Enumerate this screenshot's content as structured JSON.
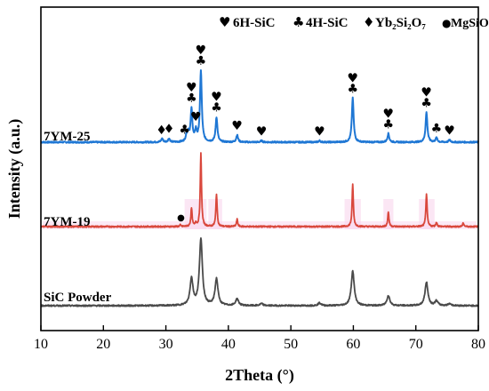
{
  "chart_data": {
    "type": "line",
    "xlabel": "2Theta (°)",
    "ylabel": "Intensity (a.u.)",
    "xlim": [
      10,
      80
    ],
    "x_ticks": [
      "10",
      "20",
      "30",
      "40",
      "50",
      "60",
      "70",
      "80"
    ],
    "y_ticks_shown": false,
    "grid": false,
    "legend": {
      "placement": "top",
      "entries": [
        {
          "symbol": "♥",
          "label": "6H-SiC"
        },
        {
          "symbol": "♣",
          "label": "4H-SiC"
        },
        {
          "symbol": "♦",
          "label": "Yb₂Si₂O₇"
        },
        {
          "symbol": "●",
          "label": "MgSiO₃"
        }
      ]
    },
    "series": [
      {
        "name": "7YM-25",
        "color": "#1f77d4",
        "baseline": 0.0,
        "peaks": [
          {
            "x": 29.4,
            "h": 0.05
          },
          {
            "x": 30.5,
            "h": 0.05
          },
          {
            "x": 33.3,
            "h": 0.08
          },
          {
            "x": 33.6,
            "h": 0.12
          },
          {
            "x": 34.1,
            "h": 0.45
          },
          {
            "x": 34.8,
            "h": 0.15
          },
          {
            "x": 35.6,
            "h": 1.0
          },
          {
            "x": 38.1,
            "h": 0.35
          },
          {
            "x": 41.4,
            "h": 0.1
          },
          {
            "x": 45.3,
            "h": 0.02
          },
          {
            "x": 54.6,
            "h": 0.02
          },
          {
            "x": 59.9,
            "h": 0.62
          },
          {
            "x": 65.6,
            "h": 0.12
          },
          {
            "x": 71.7,
            "h": 0.42
          },
          {
            "x": 73.3,
            "h": 0.06
          },
          {
            "x": 75.4,
            "h": 0.03
          }
        ],
        "markers": [
          {
            "x": 29.3,
            "symbols": "♦"
          },
          {
            "x": 30.5,
            "symbols": "♦"
          },
          {
            "x": 33.0,
            "symbols": "♣"
          },
          {
            "x": 34.1,
            "symbols": "♥♣"
          },
          {
            "x": 34.8,
            "symbols": "♥"
          },
          {
            "x": 35.6,
            "symbols": "♥♣"
          },
          {
            "x": 38.1,
            "symbols": "♥♣"
          },
          {
            "x": 41.4,
            "symbols": "♥"
          },
          {
            "x": 45.3,
            "symbols": "♥"
          },
          {
            "x": 54.6,
            "symbols": "♥"
          },
          {
            "x": 59.9,
            "symbols": "♥♣"
          },
          {
            "x": 65.6,
            "symbols": "♥♣"
          },
          {
            "x": 71.7,
            "symbols": "♥♣"
          },
          {
            "x": 73.3,
            "symbols": "♣"
          },
          {
            "x": 75.4,
            "symbols": "♥"
          }
        ]
      },
      {
        "name": "7YM-19",
        "color": "#d9473c",
        "baseline": 0.0,
        "peaks": [
          {
            "x": 32.3,
            "h": 0.02
          },
          {
            "x": 34.1,
            "h": 0.25
          },
          {
            "x": 34.8,
            "h": 0.05
          },
          {
            "x": 35.6,
            "h": 1.0
          },
          {
            "x": 38.1,
            "h": 0.45
          },
          {
            "x": 41.4,
            "h": 0.1
          },
          {
            "x": 59.9,
            "h": 0.58
          },
          {
            "x": 65.6,
            "h": 0.2
          },
          {
            "x": 71.7,
            "h": 0.45
          },
          {
            "x": 73.3,
            "h": 0.06
          },
          {
            "x": 77.6,
            "h": 0.05
          }
        ],
        "markers": [
          {
            "x": 32.4,
            "symbols": "●"
          }
        ]
      },
      {
        "name": "SiC Powder",
        "color": "#4a4a4a",
        "baseline": 0.0,
        "peaks": [
          {
            "x": 34.1,
            "h": 0.4
          },
          {
            "x": 35.6,
            "h": 1.0
          },
          {
            "x": 38.1,
            "h": 0.4
          },
          {
            "x": 41.4,
            "h": 0.1
          },
          {
            "x": 45.3,
            "h": 0.03
          },
          {
            "x": 54.6,
            "h": 0.04
          },
          {
            "x": 59.9,
            "h": 0.52
          },
          {
            "x": 65.6,
            "h": 0.15
          },
          {
            "x": 71.7,
            "h": 0.35
          },
          {
            "x": 73.3,
            "h": 0.07
          },
          {
            "x": 75.4,
            "h": 0.03
          }
        ],
        "markers": []
      }
    ]
  }
}
